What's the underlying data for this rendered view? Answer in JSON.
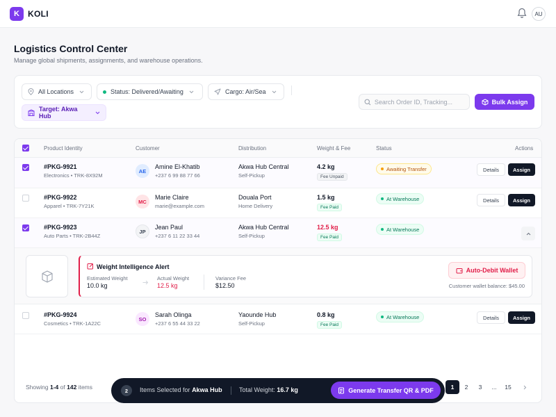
{
  "app": {
    "logo_letter": "K",
    "brand": "KOLI",
    "user_initials": "AU"
  },
  "page": {
    "title": "Logistics Control Center",
    "subtitle": "Manage global shipments, assignments, and warehouse operations."
  },
  "filters": {
    "location": "All Locations",
    "status": "Status: Delivered/Awaiting",
    "cargo": "Cargo: Air/Sea",
    "target": "Target: Akwa Hub",
    "search_placeholder": "Search Order ID, Tracking...",
    "bulk_assign": "Bulk Assign"
  },
  "table": {
    "headers": [
      "Product Identity",
      "Customer",
      "Distribution",
      "Weight & Fee",
      "Status",
      "Actions"
    ],
    "details_label": "Details",
    "assign_label": "Assign",
    "rows": [
      {
        "id": "#PKG-9921",
        "meta": "Electronics • TRK-8X92M",
        "initials": "AE",
        "name": "Amine El-Khatib",
        "contact": "+237 6 99 88 77 66",
        "hub": "Akwa Hub Central",
        "method": "Self-Pickup",
        "weight": "4.2 kg",
        "fee": "Fee Unpaid",
        "status": "Awaiting Transfer",
        "selected": true
      },
      {
        "id": "#PKG-9922",
        "meta": "Apparel • TRK-7Y21K",
        "initials": "MC",
        "name": "Marie Claire",
        "contact": "marie@example.com",
        "hub": "Douala Port",
        "method": "Home Delivery",
        "weight": "1.5 kg",
        "fee": "Fee Paid",
        "status": "At Warehouse",
        "selected": false
      },
      {
        "id": "#PKG-9923",
        "meta": "Auto Parts • TRK-2B44Z",
        "initials": "JP",
        "name": "Jean Paul",
        "contact": "+237 6 11 22 33 44",
        "hub": "Akwa Hub Central",
        "method": "Self-Pickup",
        "weight": "12.5 kg",
        "fee": "Fee Paid",
        "status": "At Warehouse",
        "selected": true
      },
      {
        "id": "#PKG-9924",
        "meta": "Cosmetics • TRK-1A22C",
        "initials": "SO",
        "name": "Sarah Olinga",
        "contact": "+237 6 55 44 33 22",
        "hub": "Yaounde Hub",
        "method": "Self-Pickup",
        "weight": "0.8 kg",
        "fee": "Fee Paid",
        "status": "At Warehouse",
        "selected": false
      }
    ]
  },
  "alert": {
    "title": "Weight Intelligence Alert",
    "estimated_label": "Estimated Weight",
    "estimated_value": "10.0 kg",
    "actual_label": "Actual Weight",
    "actual_value": "12.5 kg",
    "variance_label": "Variance Fee",
    "variance_value": "$12.50",
    "debit_button": "Auto-Debit Wallet",
    "wallet_balance": "Customer wallet balance: $45.00"
  },
  "pagination": {
    "showing_prefix": "Showing",
    "range": "1-4",
    "of": "of",
    "total": "142",
    "items": "items",
    "pages": [
      "1",
      "2",
      "3",
      "...",
      "15"
    ]
  },
  "selection_bar": {
    "count": "2",
    "items_selected_for": "Items Selected for",
    "hub": "Akwa Hub",
    "total_weight_label": "Total Weight:",
    "total_weight": "16.7 kg",
    "generate_button": "Generate Transfer QR & PDF"
  },
  "colors": {
    "accent": "#7c3aed",
    "danger": "#e11d48",
    "success": "#10b981",
    "warning": "#f59e0b",
    "dark": "#111827"
  }
}
